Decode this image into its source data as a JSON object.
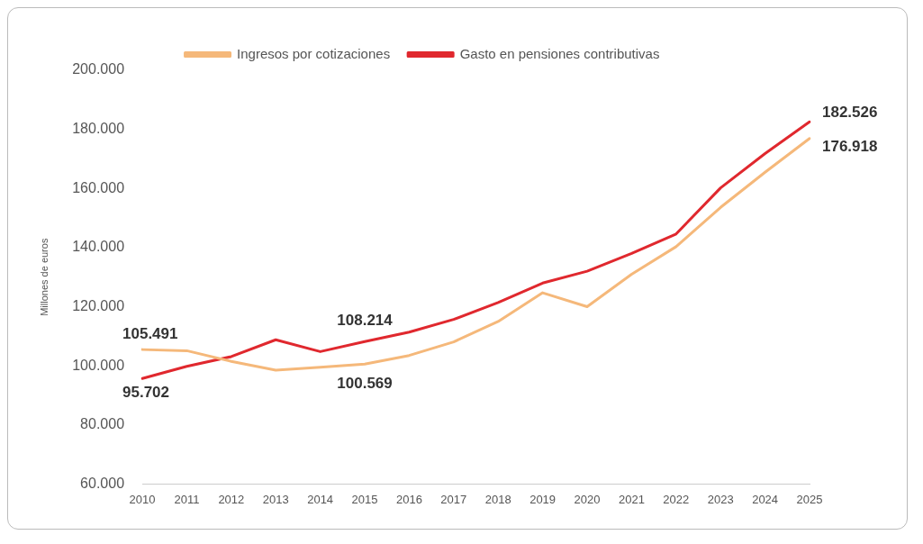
{
  "chart_data": {
    "type": "line",
    "ylabel": "Millones de euros",
    "categories": [
      "2010",
      "2011",
      "2012",
      "2013",
      "2014",
      "2015",
      "2016",
      "2017",
      "2018",
      "2019",
      "2020",
      "2021",
      "2022",
      "2023",
      "2024",
      "2025"
    ],
    "series": [
      {
        "name": "Ingresos por cotizaciones",
        "color": "#f5b87a",
        "values": [
          105491,
          105100,
          101500,
          98500,
          99500,
          100569,
          103500,
          108100,
          115000,
          124700,
          120000,
          131000,
          140300,
          153600,
          165500,
          176918
        ],
        "value_labels": [
          "105.491",
          null,
          null,
          null,
          null,
          "100.569",
          null,
          null,
          null,
          null,
          null,
          null,
          null,
          null,
          null,
          "176.918"
        ]
      },
      {
        "name": "Gasto en pensiones contributivas",
        "color": "#e0282e",
        "values": [
          95702,
          99800,
          103100,
          108800,
          104800,
          108214,
          111400,
          115700,
          121400,
          128000,
          132000,
          138000,
          144600,
          160200,
          171800,
          182526
        ],
        "value_labels": [
          "95.702",
          null,
          null,
          null,
          null,
          "108.214",
          null,
          null,
          null,
          null,
          null,
          null,
          null,
          null,
          null,
          "182.526"
        ]
      }
    ],
    "ylim": [
      60000,
      200000
    ],
    "yticks": [
      {
        "value": 60000,
        "label": "60.000"
      },
      {
        "value": 80000,
        "label": "80.000"
      },
      {
        "value": 100000,
        "label": "100.000"
      },
      {
        "value": 120000,
        "label": "120.000"
      },
      {
        "value": 140000,
        "label": "140.000"
      },
      {
        "value": 160000,
        "label": "160.000"
      },
      {
        "value": 180000,
        "label": "180.000"
      },
      {
        "value": 200000,
        "label": "200.000"
      }
    ],
    "grid": false,
    "legend": "top",
    "marker": "none",
    "line_style": "solid"
  }
}
